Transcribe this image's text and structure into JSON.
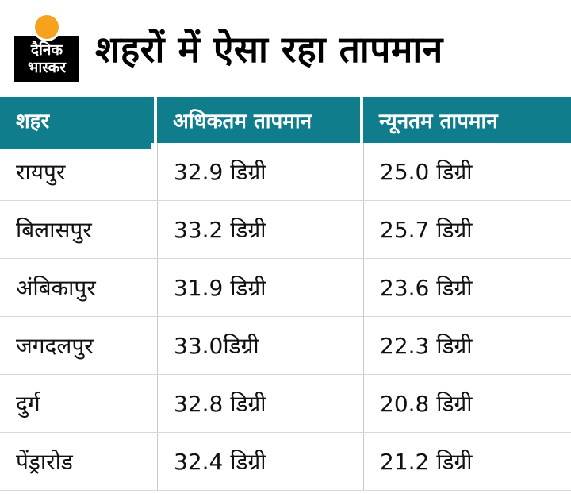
{
  "logo": {
    "line1": "दैनिक",
    "line2": "भास्कर",
    "sun_color": "#f6a21e"
  },
  "page": {
    "title": "शहरों में ऐसा रहा तापमान"
  },
  "colors": {
    "header_bg": "#107d8c",
    "row_divider": "#d8d8d8",
    "column_divider": "#c9c9c9",
    "accent_orange": "#f6a21e"
  },
  "chart_data": {
    "type": "table",
    "title": "शहरों में ऐसा रहा तापमान",
    "columns": [
      "शहर",
      "अधिकतम तापमान",
      "न्यूनतम तापमान"
    ],
    "rows": [
      [
        "रायपुर",
        "32.9 डिग्री",
        "25.0 डिग्री"
      ],
      [
        "बिलासपुर",
        "33.2 डिग्री",
        "25.7 डिग्री"
      ],
      [
        "अंबिकापुर",
        "31.9 डिग्री",
        "23.6 डिग्री"
      ],
      [
        "जगदलपुर",
        " 33.0डिग्री",
        "22.3 डिग्री"
      ],
      [
        "दुर्ग",
        "32.8 डिग्री",
        "20.8 डिग्री"
      ],
      [
        "पेंड्रारोड",
        "32.4 डिग्री",
        "21.2 डिग्री"
      ]
    ],
    "cities": [
      "रायपुर",
      "बिलासपुर",
      "अंबिकापुर",
      "जगदलपुर",
      "दुर्ग",
      "पेंड्रारोड"
    ],
    "series": [
      {
        "name": "अधिकतम तापमान",
        "values": [
          32.9,
          33.2,
          31.9,
          33.0,
          32.8,
          32.4
        ]
      },
      {
        "name": "न्यूनतम तापमान",
        "values": [
          25.0,
          25.7,
          23.6,
          22.3,
          20.8,
          21.2
        ]
      }
    ],
    "unit": "डिग्री"
  }
}
